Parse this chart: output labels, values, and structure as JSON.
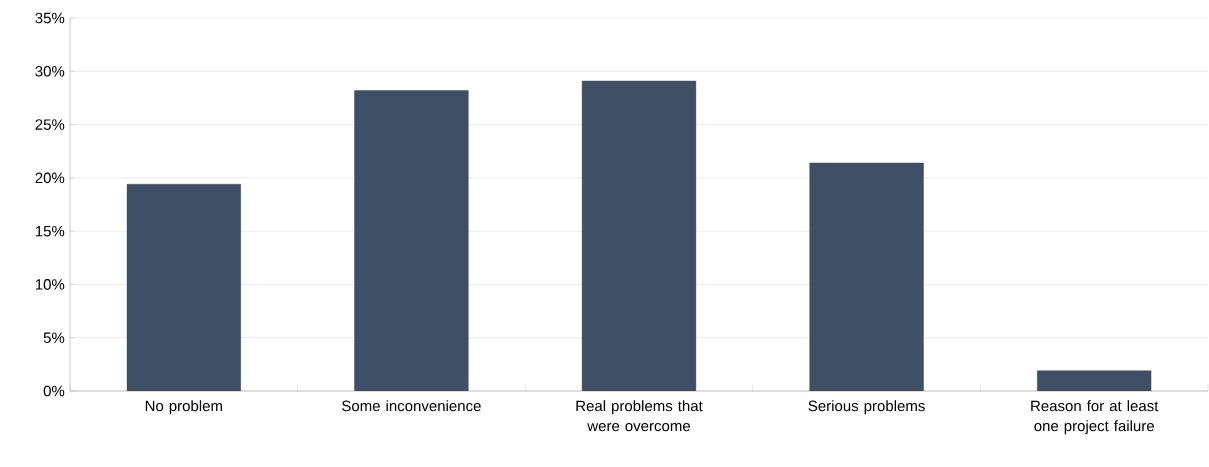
{
  "chart_data": {
    "type": "bar",
    "categories": [
      "No problem",
      "Some inconvenience",
      "Real problems that were overcome",
      "Serious problems",
      "Reason for at least one project failure"
    ],
    "values": [
      19.4,
      28.2,
      29.1,
      21.4,
      1.9
    ],
    "color": "#3f4f66",
    "ylim": [
      0,
      35
    ],
    "yticks": [
      {
        "value": 0,
        "label": "0%"
      },
      {
        "value": 5,
        "label": "5%"
      },
      {
        "value": 10,
        "label": "10%"
      },
      {
        "value": 15,
        "label": "15%"
      },
      {
        "value": 20,
        "label": "20%"
      },
      {
        "value": 25,
        "label": "25%"
      },
      {
        "value": 30,
        "label": "30%"
      },
      {
        "value": 35,
        "label": "35%"
      }
    ],
    "grid": "y"
  }
}
